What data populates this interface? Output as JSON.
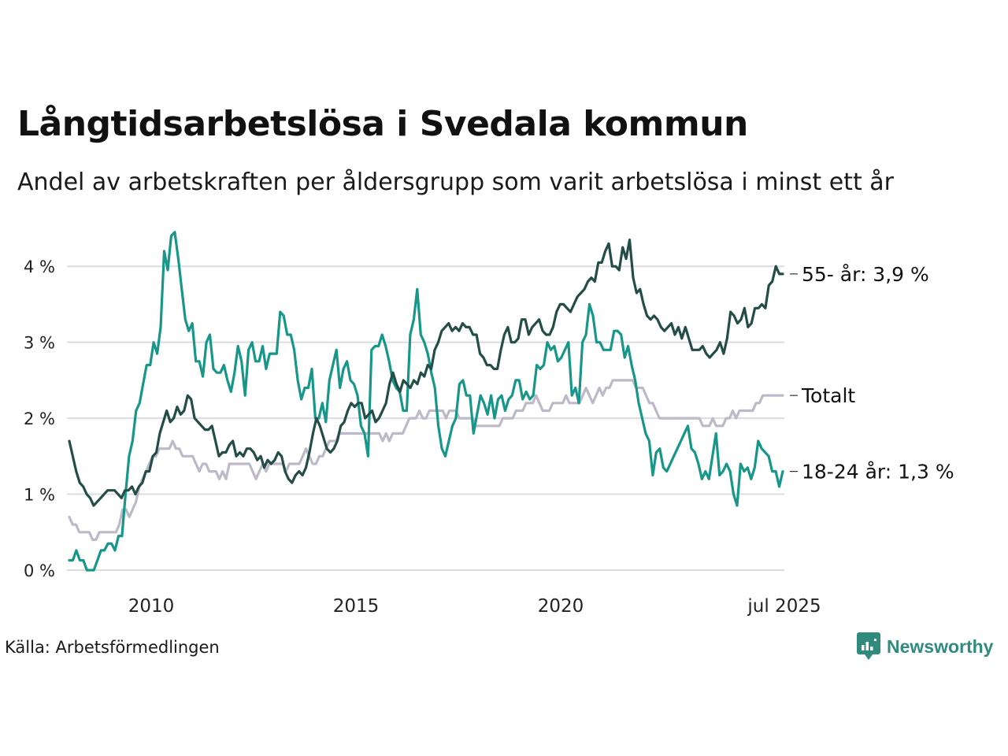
{
  "title": "Långtidsarbetslösa i Svedala kommun",
  "subtitle": "Andel av arbetskraften per åldersgrupp som varit arbetslösa i minst ett år",
  "source": "Källa: Arbetsförmedlingen",
  "brand": "Newsworthy",
  "chart_data": {
    "type": "line",
    "x_start": 2008.0,
    "x_step_months": 1,
    "ylim": [
      0,
      4.5
    ],
    "xlim": [
      2008.0,
      2025.5
    ],
    "yticks": [
      0,
      1,
      2,
      3,
      4
    ],
    "ytick_labels": [
      "0 %",
      "1 %",
      "2 %",
      "3 %",
      "4 %"
    ],
    "xticks": [
      2010,
      2015,
      2020,
      2025.5
    ],
    "xtick_labels": [
      "2010",
      "2015",
      "2020",
      "jul 2025"
    ],
    "grid": true,
    "series": [
      {
        "name": "Totalt",
        "label": "Totalt",
        "color": "#bdb9c9",
        "values": [
          0.7,
          0.6,
          0.6,
          0.5,
          0.5,
          0.5,
          0.5,
          0.4,
          0.4,
          0.5,
          0.5,
          0.5,
          0.5,
          0.5,
          0.5,
          0.6,
          0.8,
          0.8,
          0.7,
          0.8,
          0.9,
          1.1,
          1.2,
          1.3,
          1.4,
          1.5,
          1.5,
          1.6,
          1.6,
          1.6,
          1.6,
          1.7,
          1.6,
          1.6,
          1.5,
          1.5,
          1.5,
          1.5,
          1.4,
          1.3,
          1.4,
          1.4,
          1.3,
          1.3,
          1.3,
          1.2,
          1.3,
          1.2,
          1.4,
          1.4,
          1.4,
          1.4,
          1.4,
          1.4,
          1.4,
          1.3,
          1.2,
          1.3,
          1.4,
          1.3,
          1.4,
          1.4,
          1.4,
          1.4,
          1.4,
          1.3,
          1.4,
          1.4,
          1.4,
          1.4,
          1.5,
          1.6,
          1.5,
          1.4,
          1.4,
          1.5,
          1.5,
          1.6,
          1.7,
          1.7,
          1.7,
          1.8,
          1.8,
          1.8,
          1.8,
          1.8,
          1.8,
          1.8,
          1.8,
          1.8,
          1.8,
          1.8,
          1.8,
          1.8,
          1.7,
          1.8,
          1.7,
          1.8,
          1.8,
          1.8,
          1.8,
          1.9,
          2.0,
          2.0,
          2.0,
          2.1,
          2.0,
          2.0,
          2.1,
          2.1,
          2.1,
          2.1,
          2.1,
          2.0,
          2.1,
          2.1,
          2.1,
          2.0,
          2.0,
          2.0,
          2.0,
          2.0,
          1.9,
          1.9,
          1.9,
          1.9,
          1.9,
          1.9,
          1.9,
          1.9,
          2.0,
          2.0,
          2.0,
          2.0,
          2.1,
          2.1,
          2.1,
          2.2,
          2.2,
          2.2,
          2.3,
          2.2,
          2.1,
          2.1,
          2.1,
          2.2,
          2.2,
          2.2,
          2.2,
          2.3,
          2.2,
          2.2,
          2.2,
          2.2,
          2.3,
          2.4,
          2.3,
          2.2,
          2.3,
          2.4,
          2.3,
          2.4,
          2.4,
          2.5,
          2.5,
          2.5,
          2.5,
          2.5,
          2.5,
          2.5,
          2.4,
          2.4,
          2.4,
          2.3,
          2.2,
          2.2,
          2.1,
          2.0,
          2.0,
          2.0,
          2.0,
          2.0,
          2.0,
          2.0,
          2.0,
          2.0,
          2.0,
          2.0,
          2.0,
          2.0,
          1.9,
          1.9,
          1.9,
          2.0,
          1.9,
          1.9,
          1.9,
          2.0,
          2.0,
          2.1,
          2.0,
          2.1,
          2.1,
          2.1,
          2.1,
          2.1,
          2.2,
          2.2,
          2.3,
          2.3,
          2.3,
          2.3,
          2.3,
          2.3,
          2.3
        ]
      },
      {
        "name": "18-24 år",
        "label": "18-24 år: 1,3 %",
        "color": "#17968a",
        "values": [
          0.13,
          0.13,
          0.26,
          0.13,
          0.13,
          0.0,
          0.0,
          0.0,
          0.13,
          0.26,
          0.26,
          0.35,
          0.35,
          0.26,
          0.45,
          0.45,
          1.0,
          1.5,
          1.7,
          2.1,
          2.2,
          2.45,
          2.7,
          2.7,
          3.0,
          2.85,
          3.2,
          4.2,
          3.95,
          4.4,
          4.45,
          4.1,
          3.7,
          3.3,
          3.15,
          3.25,
          2.75,
          2.75,
          2.55,
          3.0,
          3.1,
          2.65,
          2.6,
          2.6,
          2.7,
          2.5,
          2.35,
          2.6,
          2.95,
          2.75,
          2.3,
          2.9,
          3.0,
          2.75,
          2.75,
          2.95,
          2.65,
          2.85,
          2.85,
          2.85,
          3.4,
          3.35,
          3.1,
          3.1,
          2.9,
          2.5,
          2.25,
          2.4,
          2.4,
          2.65,
          2.0,
          2.0,
          2.2,
          1.95,
          2.5,
          2.7,
          2.9,
          2.4,
          2.65,
          2.75,
          2.5,
          2.45,
          2.3,
          1.9,
          1.8,
          1.5,
          2.9,
          2.95,
          2.95,
          3.1,
          2.95,
          2.75,
          2.5,
          2.4,
          2.35,
          2.1,
          2.1,
          3.1,
          3.3,
          3.7,
          3.1,
          3.0,
          2.85,
          2.6,
          2.4,
          1.9,
          1.6,
          1.5,
          1.7,
          1.9,
          2.0,
          2.45,
          2.5,
          2.3,
          2.3,
          1.8,
          2.05,
          2.3,
          2.2,
          2.05,
          2.3,
          2.0,
          2.25,
          2.3,
          2.1,
          2.25,
          2.3,
          2.5,
          2.5,
          2.25,
          2.35,
          2.25,
          2.3,
          2.7,
          2.65,
          2.7,
          3.0,
          2.9,
          2.95,
          2.75,
          2.8,
          2.9,
          3.0,
          2.3,
          2.4,
          2.2,
          3.0,
          3.1,
          3.5,
          3.35,
          3.0,
          3.0,
          2.9,
          2.9,
          2.9,
          3.15,
          3.15,
          3.1,
          2.8,
          2.95,
          2.7,
          2.5,
          2.2,
          2.0,
          1.8,
          1.7,
          1.25,
          1.55,
          1.6,
          1.35,
          1.3,
          1.4,
          1.5,
          1.6,
          1.7,
          1.8,
          1.9,
          1.6,
          1.55,
          1.4,
          1.2,
          1.3,
          1.2,
          1.5,
          1.8,
          1.25,
          1.3,
          1.4,
          1.3,
          1.0,
          0.85,
          1.4,
          1.3,
          1.35,
          1.2,
          1.35,
          1.7,
          1.6,
          1.55,
          1.5,
          1.3,
          1.3,
          1.1,
          1.3
        ]
      },
      {
        "name": "55- år",
        "label": "55- år: 3,9 %",
        "color": "#234d46",
        "values": [
          1.7,
          1.5,
          1.3,
          1.15,
          1.1,
          1.0,
          0.95,
          0.85,
          0.9,
          0.95,
          1.0,
          1.05,
          1.05,
          1.05,
          1.0,
          0.95,
          1.05,
          1.05,
          1.1,
          1.0,
          1.1,
          1.15,
          1.3,
          1.3,
          1.5,
          1.55,
          1.8,
          1.95,
          2.1,
          1.95,
          2.0,
          2.15,
          2.05,
          2.1,
          2.3,
          2.25,
          2.0,
          1.95,
          1.9,
          1.85,
          1.85,
          1.9,
          1.7,
          1.5,
          1.55,
          1.55,
          1.65,
          1.7,
          1.5,
          1.55,
          1.5,
          1.6,
          1.6,
          1.55,
          1.45,
          1.5,
          1.35,
          1.45,
          1.4,
          1.45,
          1.55,
          1.5,
          1.3,
          1.2,
          1.15,
          1.25,
          1.3,
          1.25,
          1.35,
          1.55,
          1.8,
          2.0,
          1.9,
          1.75,
          1.6,
          1.55,
          1.6,
          1.7,
          1.9,
          1.95,
          2.1,
          2.2,
          2.15,
          2.2,
          2.2,
          2.0,
          2.05,
          2.1,
          1.95,
          2.0,
          2.1,
          2.2,
          2.45,
          2.6,
          2.45,
          2.35,
          2.5,
          2.45,
          2.4,
          2.5,
          2.45,
          2.6,
          2.55,
          2.7,
          2.65,
          2.9,
          3.0,
          3.15,
          3.2,
          3.25,
          3.15,
          3.2,
          3.15,
          3.25,
          3.2,
          3.2,
          3.1,
          3.1,
          2.85,
          2.8,
          2.7,
          2.7,
          2.65,
          2.65,
          2.9,
          3.1,
          3.2,
          3.0,
          3.0,
          3.05,
          3.3,
          3.3,
          3.1,
          3.2,
          3.25,
          3.3,
          3.15,
          3.1,
          3.1,
          3.2,
          3.4,
          3.5,
          3.5,
          3.45,
          3.4,
          3.5,
          3.6,
          3.65,
          3.7,
          3.8,
          3.85,
          3.8,
          4.05,
          4.05,
          4.2,
          4.3,
          4.0,
          4.0,
          3.95,
          4.25,
          4.1,
          4.35,
          3.85,
          3.65,
          3.7,
          3.5,
          3.35,
          3.3,
          3.35,
          3.3,
          3.2,
          3.15,
          3.2,
          3.25,
          3.1,
          3.2,
          3.05,
          3.2,
          3.05,
          2.9,
          2.9,
          2.9,
          2.95,
          2.85,
          2.8,
          2.85,
          2.9,
          3.0,
          2.85,
          3.05,
          3.4,
          3.35,
          3.25,
          3.3,
          3.45,
          3.2,
          3.25,
          3.45,
          3.45,
          3.5,
          3.45,
          3.75,
          3.8,
          4.0,
          3.9,
          3.9
        ]
      }
    ]
  }
}
